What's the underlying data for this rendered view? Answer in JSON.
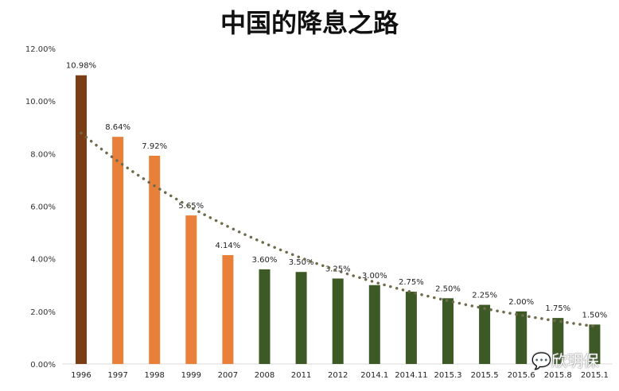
{
  "chart_data": {
    "type": "bar",
    "title": "中国的降息之路",
    "categories": [
      "1996",
      "1997",
      "1998",
      "1999",
      "2007",
      "2008",
      "2011",
      "2012",
      "2014.1",
      "2014.11",
      "2015.3",
      "2015.5",
      "2015.6",
      "2015.8",
      "2015.1"
    ],
    "values": [
      10.98,
      8.64,
      7.92,
      5.65,
      4.14,
      3.6,
      3.5,
      3.25,
      3.0,
      2.75,
      2.5,
      2.25,
      2.0,
      1.75,
      1.5
    ],
    "data_labels": [
      "10.98%",
      "8.64%",
      "7.92%",
      "5.65%",
      "4.14%",
      "3.60%",
      "3.50%",
      "3.25%",
      "3.00%",
      "2.75%",
      "2.50%",
      "2.25%",
      "2.00%",
      "1.75%",
      "1.50%"
    ],
    "bar_colors": [
      "#7a3d14",
      "#e8803a",
      "#e8803a",
      "#e8803a",
      "#e8803a",
      "#3d5a26",
      "#3d5a26",
      "#3d5a26",
      "#3d5a26",
      "#3d5a26",
      "#3d5a26",
      "#3d5a26",
      "#3d5a26",
      "#3d5a26",
      "#3d5a26"
    ],
    "ylim": [
      0,
      12
    ],
    "yticks": [
      "0.00%",
      "2.00%",
      "4.00%",
      "6.00%",
      "8.00%",
      "10.00%",
      "12.00%"
    ],
    "trendline": {
      "type": "exponential",
      "style": "dotted",
      "color": "#6e6a4a"
    },
    "grid": false,
    "xlabel": "",
    "ylabel": ""
  },
  "watermark": "欣玥保"
}
